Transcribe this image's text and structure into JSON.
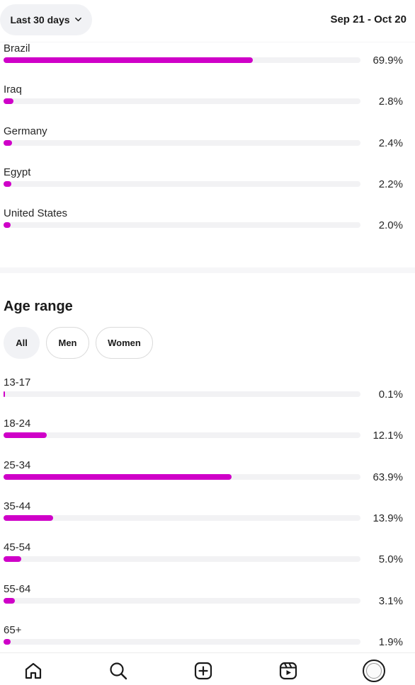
{
  "header": {
    "range_label": "Last 30 days",
    "date_range": "Sep 21 - Oct 20"
  },
  "countries": [
    {
      "label": "Brazil",
      "pct": "69.9%",
      "value": 69.9
    },
    {
      "label": "Iraq",
      "pct": "2.8%",
      "value": 2.8
    },
    {
      "label": "Germany",
      "pct": "2.4%",
      "value": 2.4
    },
    {
      "label": "Egypt",
      "pct": "2.2%",
      "value": 2.2
    },
    {
      "label": "United States",
      "pct": "2.0%",
      "value": 2.0
    }
  ],
  "age": {
    "title": "Age range",
    "filters": [
      "All",
      "Men",
      "Women"
    ],
    "selected_filter": "All",
    "rows": [
      {
        "label": "13-17",
        "pct": "0.1%",
        "value": 0.1
      },
      {
        "label": "18-24",
        "pct": "12.1%",
        "value": 12.1
      },
      {
        "label": "25-34",
        "pct": "63.9%",
        "value": 63.9
      },
      {
        "label": "35-44",
        "pct": "13.9%",
        "value": 13.9
      },
      {
        "label": "45-54",
        "pct": "5.0%",
        "value": 5.0
      },
      {
        "label": "55-64",
        "pct": "3.1%",
        "value": 3.1
      },
      {
        "label": "65+",
        "pct": "1.9%",
        "value": 1.9
      }
    ]
  },
  "nav": {
    "items": [
      "home-icon",
      "search-icon",
      "create-icon",
      "reels-icon",
      "profile-avatar"
    ]
  },
  "colors": {
    "accent": "#cf00c8",
    "track": "#f2f2f4"
  }
}
